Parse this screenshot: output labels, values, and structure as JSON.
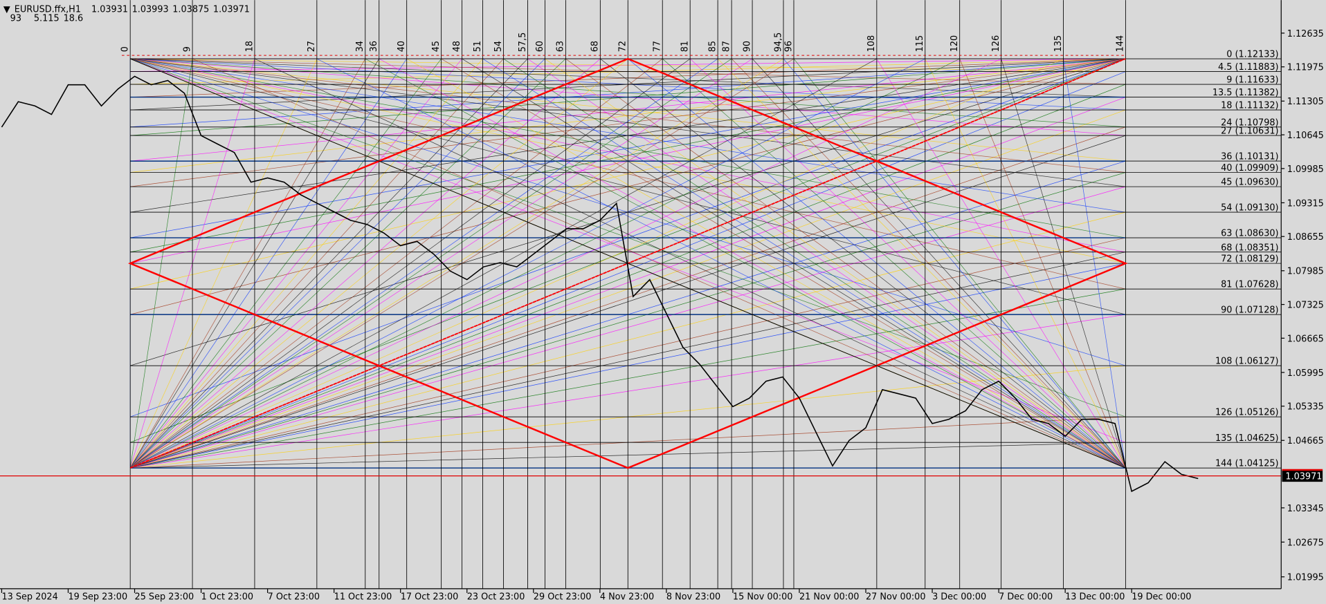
{
  "chart_data": {
    "type": "line",
    "title": "EURUSD.ffx,H1",
    "ohlc": [
      1.03931,
      1.03993,
      1.03875,
      1.03971
    ],
    "indicators": [
      93,
      5.115,
      18.6
    ],
    "categories": [
      "13 Sep 2024",
      null,
      null,
      null,
      "19 Sep 23:00",
      null,
      null,
      null,
      "25 Sep 23:00",
      null,
      null,
      null,
      "1 Oct 23:00",
      null,
      null,
      null,
      "7 Oct 23:00",
      null,
      null,
      null,
      "11 Oct 23:00",
      null,
      null,
      null,
      "17 Oct 23:00",
      null,
      null,
      null,
      "23 Oct 23:00",
      null,
      null,
      null,
      "29 Oct 23:00",
      null,
      null,
      null,
      "4 Nov 23:00",
      null,
      null,
      null,
      "8 Nov 23:00",
      null,
      null,
      null,
      "15 Nov 00:00",
      null,
      null,
      null,
      "21 Nov 00:00",
      null,
      null,
      null,
      "27 Nov 00:00",
      null,
      null,
      null,
      "3 Dec 00:00",
      null,
      null,
      null,
      "7 Dec 00:00",
      null,
      null,
      null,
      "13 Dec 00:00",
      null,
      null,
      null,
      "19 Dec 00:00",
      null,
      null,
      null,
      null
    ],
    "series": [
      {
        "color": "#000000",
        "values": [
          1.10795,
          1.11293,
          1.1121,
          1.11044,
          1.11624,
          1.11624,
          1.1121,
          1.11541,
          1.1179,
          1.11624,
          1.11707,
          1.11458,
          1.1063,
          1.10464,
          1.10298,
          1.09718,
          1.09801,
          1.09718,
          1.0947,
          1.09304,
          1.09138,
          1.08972,
          1.0889,
          1.08724,
          1.08475,
          1.08558,
          1.0831,
          1.07978,
          1.07812,
          1.08061,
          1.08144,
          1.08061,
          1.0831,
          1.08558,
          1.08807,
          1.08807,
          1.08972,
          1.09304,
          1.07481,
          1.07812,
          1.07149,
          1.06486,
          1.06155,
          1.05741,
          1.05326,
          1.05492,
          1.05824,
          1.05906,
          1.05492,
          1.04829,
          1.04166,
          1.04663,
          1.04912,
          1.05658,
          1.05575,
          1.05492,
          1.04995,
          1.05078,
          1.05243,
          1.05658,
          1.05824,
          1.05492,
          1.05078,
          1.04995,
          1.04746,
          1.05078,
          1.05078,
          1.04995,
          1.03669,
          1.03835,
          1.04249,
          1.04001,
          1.03918
        ]
      }
    ],
    "ylim": [
      1.01763,
      1.13281
    ],
    "yticks": [
      1.12635,
      1.11975,
      1.11305,
      1.10645,
      1.09985,
      1.09315,
      1.08655,
      1.07985,
      1.07325,
      1.06665,
      1.05995,
      1.05335,
      1.04665,
      1.03345,
      1.02675,
      1.01995
    ],
    "last_price": 1.03971,
    "last_price_color": "#e00000",
    "gann": {
      "time_divisions": [
        0,
        9,
        18,
        27,
        34,
        36,
        40,
        45,
        48,
        51,
        54,
        {
          "value": 57.5,
          "label": "57,5"
        },
        60,
        63,
        68,
        72,
        77,
        81,
        85,
        87,
        90,
        {
          "value": 94.5,
          "label": "94,5"
        },
        96,
        108,
        115,
        120,
        126,
        135,
        144
      ],
      "levels": [
        {
          "value": 1.12133,
          "label": "0 (1.12133)"
        },
        {
          "value": 1.11883,
          "label": "4.5 (1.11883)"
        },
        {
          "value": 1.11633,
          "label": "9 (1.11633)"
        },
        {
          "value": 1.11382,
          "label": "13.5 (1.11382)"
        },
        {
          "value": 1.11132,
          "label": "18 (1.11132)"
        },
        {
          "value": 1.10798,
          "label": "24 (1.10798)"
        },
        {
          "value": 1.10631,
          "label": "27 (1.10631)"
        },
        {
          "value": 1.10131,
          "label": "36 (1.10131)"
        },
        {
          "value": 1.09909,
          "label": "40 (1.09909)"
        },
        {
          "value": 1.0963,
          "label": "45 (1.09630)"
        },
        {
          "value": 1.0913,
          "label": "54 (1.09130)"
        },
        {
          "value": 1.0863,
          "label": "63 (1.08630)"
        },
        {
          "value": 1.08351,
          "label": "68 (1.08351)"
        },
        {
          "value": 1.08129,
          "label": "72 (1.08129)"
        },
        {
          "value": 1.07628,
          "label": "81 (1.07628)"
        },
        {
          "value": 1.07128,
          "label": "90 (1.07128)"
        },
        {
          "value": 1.06127,
          "label": "108 (1.06127)"
        },
        {
          "value": 1.05126,
          "label": "126 (1.05126)"
        },
        {
          "value": 1.04625,
          "label": "135 (1.04625)"
        },
        {
          "value": 1.04125,
          "label": "144 (1.04125)"
        }
      ]
    }
  }
}
